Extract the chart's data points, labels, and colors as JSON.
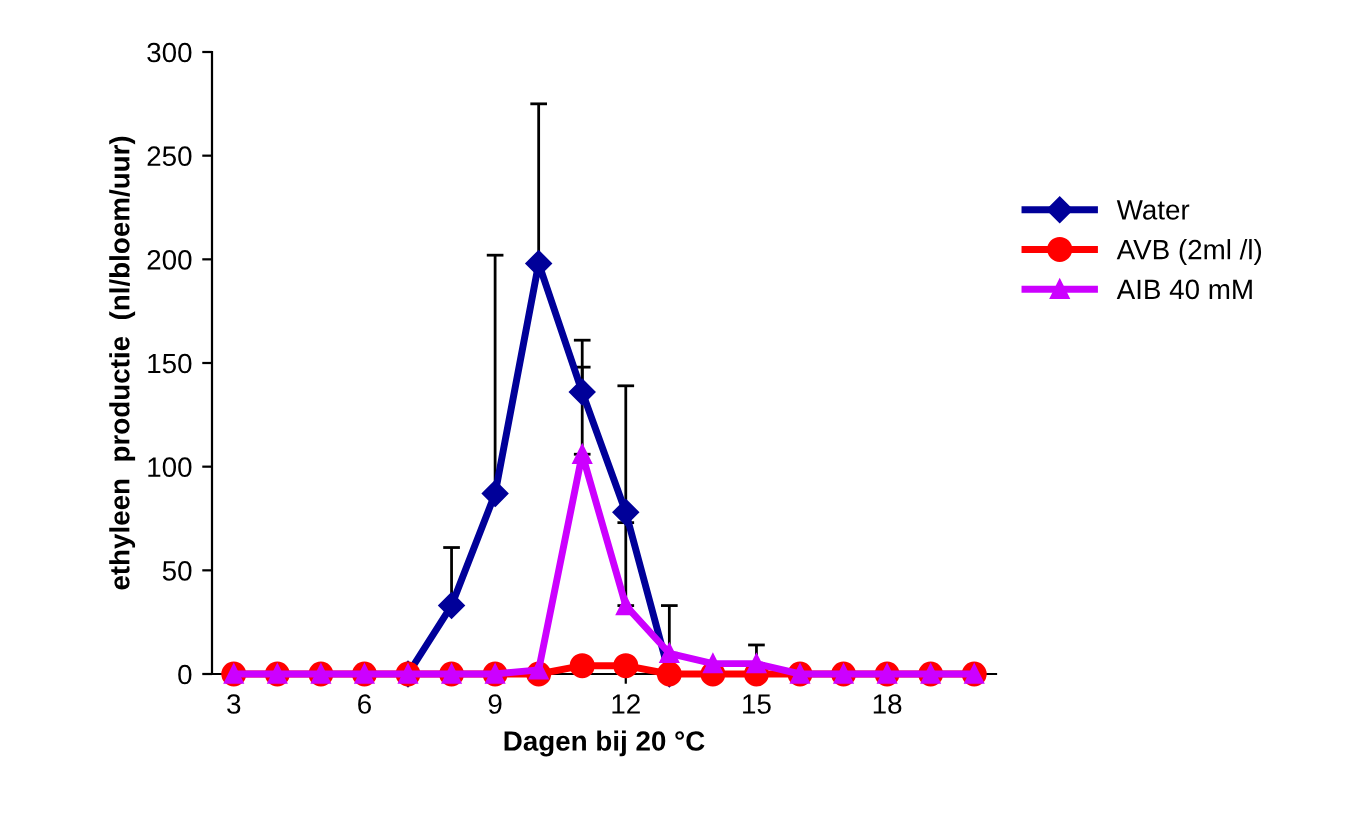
{
  "chart_data": {
    "type": "line",
    "xlabel": "Dagen bij 20 °C",
    "ylabel": "ethyleen  productie  (nl/bloem/uur)",
    "x": [
      3,
      4,
      5,
      6,
      7,
      8,
      9,
      10,
      11,
      12,
      13,
      14,
      15,
      16,
      17,
      18,
      19,
      20
    ],
    "xlim": [
      2.5,
      20.5
    ],
    "xticks": [
      3,
      6,
      9,
      12,
      15,
      18
    ],
    "ylim": [
      0,
      300
    ],
    "yticks": [
      0,
      50,
      100,
      150,
      200,
      250,
      300
    ],
    "grid": false,
    "legend": "right",
    "series": [
      {
        "name": "Water",
        "color": "#000099",
        "marker": "diamond",
        "values": [
          null,
          null,
          null,
          null,
          0,
          33,
          87,
          198,
          136,
          78,
          0,
          null,
          null,
          null,
          null,
          null,
          null,
          null
        ],
        "errors": [
          null,
          null,
          null,
          null,
          null,
          [
            33,
            61
          ],
          [
            87,
            202
          ],
          [
            198,
            275
          ],
          [
            136,
            161
          ],
          [
            78,
            139
          ],
          null,
          null,
          null,
          null,
          null,
          null,
          null,
          null
        ]
      },
      {
        "name": "AVB (2ml /l)",
        "color": "#ff0000",
        "marker": "circle",
        "values": [
          0,
          0,
          0,
          0,
          0,
          0,
          0,
          0,
          4,
          4,
          0,
          0,
          0,
          0,
          0,
          0,
          0,
          0
        ],
        "errors": [
          null,
          null,
          null,
          null,
          null,
          null,
          null,
          null,
          null,
          null,
          null,
          null,
          null,
          null,
          null,
          null,
          null,
          null
        ]
      },
      {
        "name": "AIB 40 mM",
        "color": "#cc00ff",
        "marker": "triangle",
        "values": [
          0,
          0,
          0,
          0,
          0,
          0,
          0,
          2,
          106,
          33,
          10,
          5,
          5,
          0,
          0,
          0,
          0,
          0
        ],
        "errors": [
          null,
          null,
          null,
          null,
          null,
          null,
          null,
          null,
          [
            106,
            148
          ],
          [
            33,
            73
          ],
          [
            10,
            33
          ],
          null,
          [
            5,
            14
          ],
          null,
          null,
          null,
          null,
          null
        ]
      }
    ]
  }
}
